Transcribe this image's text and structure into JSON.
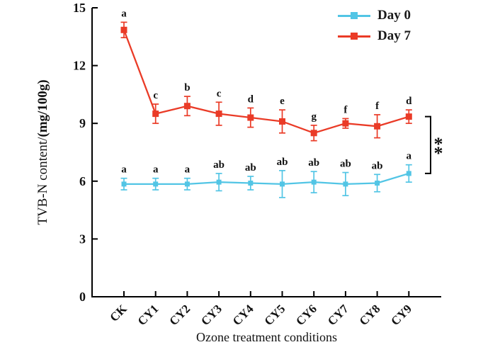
{
  "figure": {
    "background": "#ffffff",
    "axis_color": "#000000"
  },
  "labels": {
    "xlabel": "Ozone treatment conditions",
    "ylabel_regular": "TVB-N content/",
    "ylabel_bold": "(mg/100g)"
  },
  "chart_data": {
    "type": "line",
    "title": "",
    "xlabel": "Ozone treatment conditions",
    "ylabel": "TVB-N content/(mg/100g)",
    "ylim": [
      0,
      15
    ],
    "yticks": [
      0,
      3,
      6,
      9,
      12,
      15
    ],
    "grid": false,
    "legend_position": "top-right",
    "categories": [
      "CK",
      "CY1",
      "CY2",
      "CY3",
      "CY4",
      "CY5",
      "CY6",
      "CY7",
      "CY8",
      "CY9"
    ],
    "series": [
      {
        "name": "Day 0",
        "color": "#52C5E5",
        "marker": "square",
        "marker_size": 7,
        "values": [
          5.85,
          5.85,
          5.85,
          5.95,
          5.9,
          5.85,
          5.95,
          5.85,
          5.9,
          6.4
        ],
        "errors": [
          0.3,
          0.3,
          0.3,
          0.45,
          0.35,
          0.7,
          0.55,
          0.6,
          0.45,
          0.45
        ],
        "letters": [
          "a",
          "a",
          "a",
          "ab",
          "ab",
          "ab",
          "ab",
          "ab",
          "ab",
          "a"
        ]
      },
      {
        "name": "Day 7",
        "color": "#EA3B27",
        "marker": "square",
        "marker_size": 9,
        "values": [
          13.85,
          9.5,
          9.9,
          9.5,
          9.3,
          9.1,
          8.5,
          9.0,
          8.85,
          9.35
        ],
        "errors": [
          0.4,
          0.5,
          0.5,
          0.6,
          0.5,
          0.6,
          0.4,
          0.25,
          0.6,
          0.35
        ],
        "letters": [
          "a",
          "c",
          "b",
          "c",
          "d",
          "e",
          "g",
          "f",
          "f",
          "d"
        ]
      }
    ],
    "significance": {
      "symbol": "**",
      "between": [
        "Day 0",
        "Day 7"
      ],
      "at_category": "CY9"
    }
  }
}
